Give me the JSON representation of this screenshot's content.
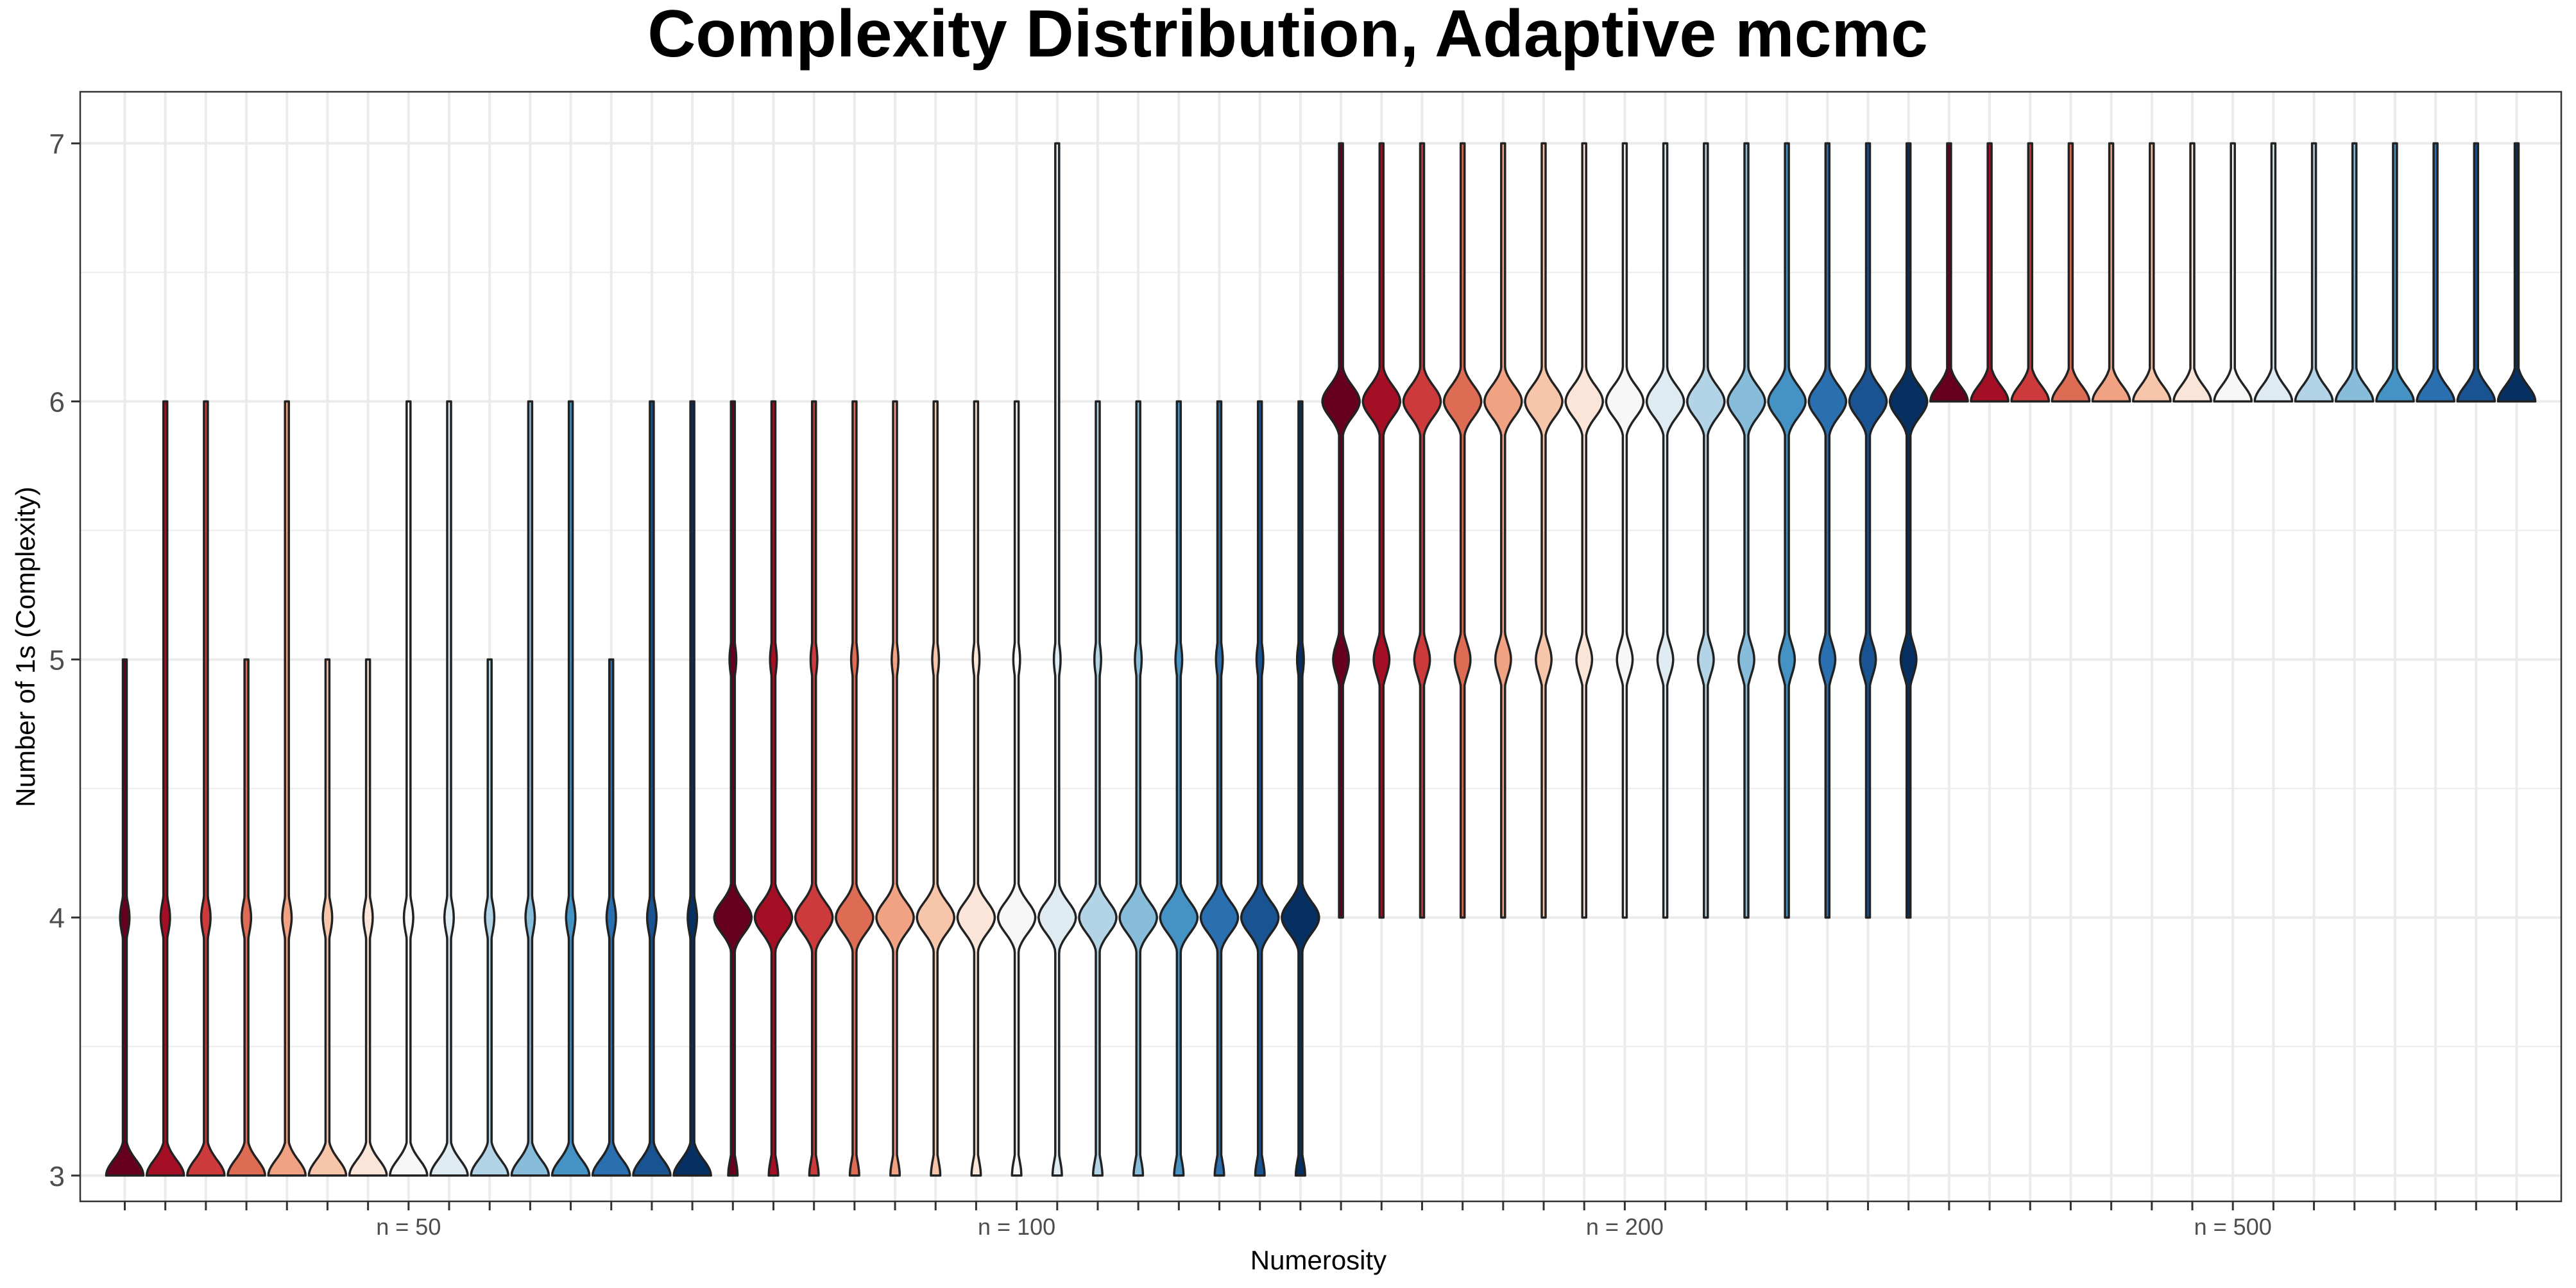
{
  "chart_data": {
    "type": "violin",
    "title": "Complexity Distribution, Adaptive mcmc",
    "xlabel": "Numerosity",
    "ylabel": "Number of 1s (Complexity)",
    "ylim": [
      2.9,
      7.2
    ],
    "yticks": [
      "3",
      "4",
      "5",
      "6",
      "7"
    ],
    "grid": true,
    "legend": "none",
    "palette": [
      "#67001f",
      "#a50f26",
      "#cc3a3b",
      "#de6c55",
      "#f0a283",
      "#f7c5aa",
      "#fbe5d8",
      "#f7f7f7",
      "#deebf2",
      "#b3d4e7",
      "#87bcdb",
      "#4592c4",
      "#2a70b0",
      "#195391",
      "#053061"
    ],
    "groups": [
      {
        "label": "n = 50",
        "violins": [
          {
            "min": 3,
            "max": 5,
            "density": {
              "3": 1.0,
              "4": 0.25
            }
          },
          {
            "min": 3,
            "max": 6,
            "density": {
              "3": 1.0,
              "4": 0.25
            }
          },
          {
            "min": 3,
            "max": 6,
            "density": {
              "3": 1.0,
              "4": 0.25
            }
          },
          {
            "min": 3,
            "max": 5,
            "density": {
              "3": 1.0,
              "4": 0.25
            }
          },
          {
            "min": 3,
            "max": 6,
            "density": {
              "3": 1.0,
              "4": 0.25
            }
          },
          {
            "min": 3,
            "max": 5,
            "density": {
              "3": 1.0,
              "4": 0.25
            }
          },
          {
            "min": 3,
            "max": 5,
            "density": {
              "3": 1.0,
              "4": 0.25
            }
          },
          {
            "min": 3,
            "max": 6,
            "density": {
              "3": 1.0,
              "4": 0.25
            }
          },
          {
            "min": 3,
            "max": 6,
            "density": {
              "3": 1.0,
              "4": 0.25
            }
          },
          {
            "min": 3,
            "max": 5,
            "density": {
              "3": 1.0,
              "4": 0.25
            }
          },
          {
            "min": 3,
            "max": 6,
            "density": {
              "3": 1.0,
              "4": 0.25
            }
          },
          {
            "min": 3,
            "max": 6,
            "density": {
              "3": 1.0,
              "4": 0.25
            }
          },
          {
            "min": 3,
            "max": 5,
            "density": {
              "3": 1.0,
              "4": 0.25
            }
          },
          {
            "min": 3,
            "max": 6,
            "density": {
              "3": 1.0,
              "4": 0.25
            }
          },
          {
            "min": 3,
            "max": 6,
            "density": {
              "3": 1.0,
              "4": 0.25
            }
          }
        ]
      },
      {
        "label": "n = 100",
        "violins": [
          {
            "min": 3,
            "max": 6,
            "density": {
              "3": 0.25,
              "4": 1.0,
              "5": 0.18
            }
          },
          {
            "min": 3,
            "max": 6,
            "density": {
              "3": 0.25,
              "4": 1.0,
              "5": 0.18
            }
          },
          {
            "min": 3,
            "max": 6,
            "density": {
              "3": 0.25,
              "4": 1.0,
              "5": 0.18
            }
          },
          {
            "min": 3,
            "max": 6,
            "density": {
              "3": 0.25,
              "4": 1.0,
              "5": 0.18
            }
          },
          {
            "min": 3,
            "max": 6,
            "density": {
              "3": 0.25,
              "4": 1.0,
              "5": 0.18
            }
          },
          {
            "min": 3,
            "max": 6,
            "density": {
              "3": 0.25,
              "4": 1.0,
              "5": 0.18
            }
          },
          {
            "min": 3,
            "max": 6,
            "density": {
              "3": 0.25,
              "4": 1.0,
              "5": 0.18
            }
          },
          {
            "min": 3,
            "max": 6,
            "density": {
              "3": 0.25,
              "4": 1.0,
              "5": 0.18
            }
          },
          {
            "min": 3,
            "max": 7,
            "density": {
              "3": 0.25,
              "4": 1.0,
              "5": 0.18
            }
          },
          {
            "min": 3,
            "max": 6,
            "density": {
              "3": 0.25,
              "4": 1.0,
              "5": 0.18
            }
          },
          {
            "min": 3,
            "max": 6,
            "density": {
              "3": 0.25,
              "4": 1.0,
              "5": 0.18
            }
          },
          {
            "min": 3,
            "max": 6,
            "density": {
              "3": 0.25,
              "4": 1.0,
              "5": 0.18
            }
          },
          {
            "min": 3,
            "max": 6,
            "density": {
              "3": 0.25,
              "4": 1.0,
              "5": 0.18
            }
          },
          {
            "min": 3,
            "max": 6,
            "density": {
              "3": 0.25,
              "4": 1.0,
              "5": 0.18
            }
          },
          {
            "min": 3,
            "max": 6,
            "density": {
              "3": 0.25,
              "4": 1.0,
              "5": 0.18
            }
          }
        ]
      },
      {
        "label": "n = 200",
        "violins": [
          {
            "min": 4,
            "max": 7,
            "density": {
              "5": 0.42,
              "6": 1.0
            }
          },
          {
            "min": 4,
            "max": 7,
            "density": {
              "5": 0.42,
              "6": 1.0
            }
          },
          {
            "min": 4,
            "max": 7,
            "density": {
              "5": 0.42,
              "6": 1.0
            }
          },
          {
            "min": 4,
            "max": 7,
            "density": {
              "5": 0.42,
              "6": 1.0
            }
          },
          {
            "min": 4,
            "max": 7,
            "density": {
              "5": 0.42,
              "6": 1.0
            }
          },
          {
            "min": 4,
            "max": 7,
            "density": {
              "5": 0.42,
              "6": 1.0
            }
          },
          {
            "min": 4,
            "max": 7,
            "density": {
              "5": 0.42,
              "6": 1.0
            }
          },
          {
            "min": 4,
            "max": 7,
            "density": {
              "5": 0.42,
              "6": 1.0
            }
          },
          {
            "min": 4,
            "max": 7,
            "density": {
              "5": 0.42,
              "6": 1.0
            }
          },
          {
            "min": 4,
            "max": 7,
            "density": {
              "5": 0.42,
              "6": 1.0
            }
          },
          {
            "min": 4,
            "max": 7,
            "density": {
              "5": 0.42,
              "6": 1.0
            }
          },
          {
            "min": 4,
            "max": 7,
            "density": {
              "5": 0.42,
              "6": 1.0
            }
          },
          {
            "min": 4,
            "max": 7,
            "density": {
              "5": 0.42,
              "6": 1.0
            }
          },
          {
            "min": 4,
            "max": 7,
            "density": {
              "5": 0.42,
              "6": 1.0
            }
          },
          {
            "min": 4,
            "max": 7,
            "density": {
              "5": 0.42,
              "6": 1.0
            }
          }
        ]
      },
      {
        "label": "n = 500",
        "violins": [
          {
            "min": 6,
            "max": 7,
            "density": {
              "6": 1.0
            }
          },
          {
            "min": 6,
            "max": 7,
            "density": {
              "6": 1.0
            }
          },
          {
            "min": 6,
            "max": 7,
            "density": {
              "6": 1.0
            }
          },
          {
            "min": 6,
            "max": 7,
            "density": {
              "6": 1.0
            }
          },
          {
            "min": 6,
            "max": 7,
            "density": {
              "6": 1.0
            }
          },
          {
            "min": 6,
            "max": 7,
            "density": {
              "6": 1.0
            }
          },
          {
            "min": 6,
            "max": 7,
            "density": {
              "6": 1.0
            }
          },
          {
            "min": 6,
            "max": 7,
            "density": {
              "6": 1.0
            }
          },
          {
            "min": 6,
            "max": 7,
            "density": {
              "6": 1.0
            }
          },
          {
            "min": 6,
            "max": 7,
            "density": {
              "6": 1.0
            }
          },
          {
            "min": 6,
            "max": 7,
            "density": {
              "6": 1.0
            }
          },
          {
            "min": 6,
            "max": 7,
            "density": {
              "6": 1.0
            }
          },
          {
            "min": 6,
            "max": 7,
            "density": {
              "6": 1.0
            }
          },
          {
            "min": 6,
            "max": 7,
            "density": {
              "6": 1.0
            }
          },
          {
            "min": 6,
            "max": 7,
            "density": {
              "6": 1.0
            }
          }
        ]
      }
    ]
  }
}
